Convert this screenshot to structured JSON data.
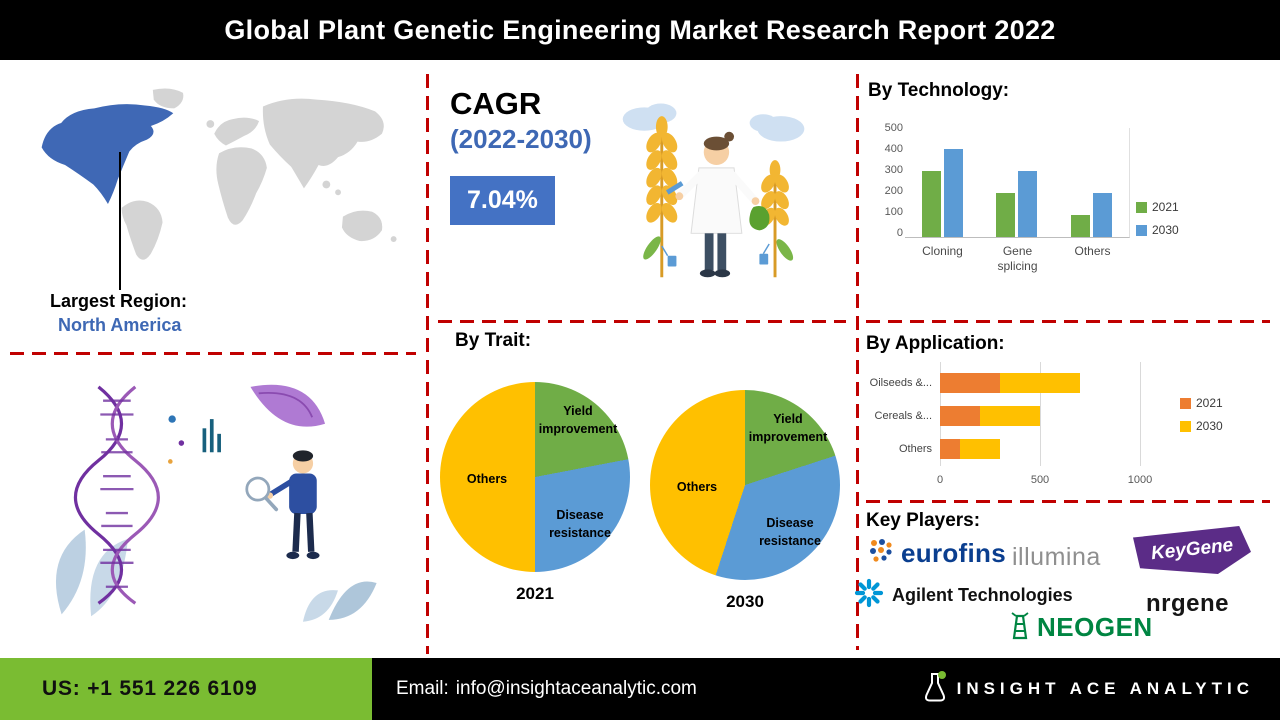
{
  "header": {
    "title": "Global Plant Genetic Engineering Market Research Report 2022"
  },
  "region": {
    "label": "Largest Region:",
    "value": "North America"
  },
  "cagr": {
    "label": "CAGR",
    "period": "(2022-2030)",
    "value": "7.04%"
  },
  "sections": {
    "technology": "By Technology:",
    "trait": "By Trait:",
    "application": "By Application:",
    "key_players": "Key Players:"
  },
  "chart_data": [
    {
      "id": "by-technology",
      "type": "bar",
      "title": "By Technology:",
      "categories": [
        "Cloning",
        "Gene splicing",
        "Others"
      ],
      "series": [
        {
          "name": "2021",
          "color": "#70ad47",
          "values": [
            300,
            200,
            100
          ]
        },
        {
          "name": "2030",
          "color": "#5b9bd5",
          "values": [
            400,
            300,
            200
          ]
        }
      ],
      "ylim": [
        0,
        500
      ],
      "yticks": [
        500,
        400,
        300,
        200,
        100,
        0
      ],
      "legend_position": "right",
      "grid": false
    },
    {
      "id": "by-trait",
      "type": "pie",
      "title": "By Trait:",
      "pies": [
        {
          "year": "2021",
          "slices": [
            {
              "label": "Yield improvement",
              "value": 22,
              "color": "#70ad47"
            },
            {
              "label": "Disease resistance",
              "value": 28,
              "color": "#5b9bd5"
            },
            {
              "label": "Others",
              "value": 50,
              "color": "#ffc000"
            }
          ]
        },
        {
          "year": "2030",
          "slices": [
            {
              "label": "Yield improvement",
              "value": 20,
              "color": "#70ad47"
            },
            {
              "label": "Disease resistance",
              "value": 35,
              "color": "#5b9bd5"
            },
            {
              "label": "Others",
              "value": 45,
              "color": "#ffc000"
            }
          ]
        }
      ]
    },
    {
      "id": "by-application",
      "type": "stacked-bar-horizontal",
      "title": "By Application:",
      "categories": [
        "Oilseeds &...",
        "Cereals &...",
        "Others"
      ],
      "series": [
        {
          "name": "2021",
          "color": "#ed7d31",
          "values": [
            300,
            200,
            100
          ]
        },
        {
          "name": "2030",
          "color": "#ffc000",
          "values": [
            400,
            300,
            200
          ]
        }
      ],
      "xlim": [
        0,
        1000
      ],
      "xticks": [
        0,
        500,
        1000
      ],
      "legend_position": "right"
    }
  ],
  "key_players": [
    "eurofins",
    "illumina",
    "KeyGene",
    "Agilent Technologies",
    "nrgene",
    "NEOGEN"
  ],
  "footer": {
    "phone": "US: +1 551 226 6109",
    "email_label": "Email:",
    "email": "info@insightaceanalytic.com",
    "brand": "INSIGHT ACE ANALYTIC"
  },
  "colors": {
    "accent_blue": "#3e68b4",
    "series_green": "#70ad47",
    "series_blue": "#5b9bd5",
    "series_orange": "#ed7d31",
    "series_yellow": "#ffc000",
    "divider_red": "#c00000",
    "footer_green": "#7abc32"
  }
}
